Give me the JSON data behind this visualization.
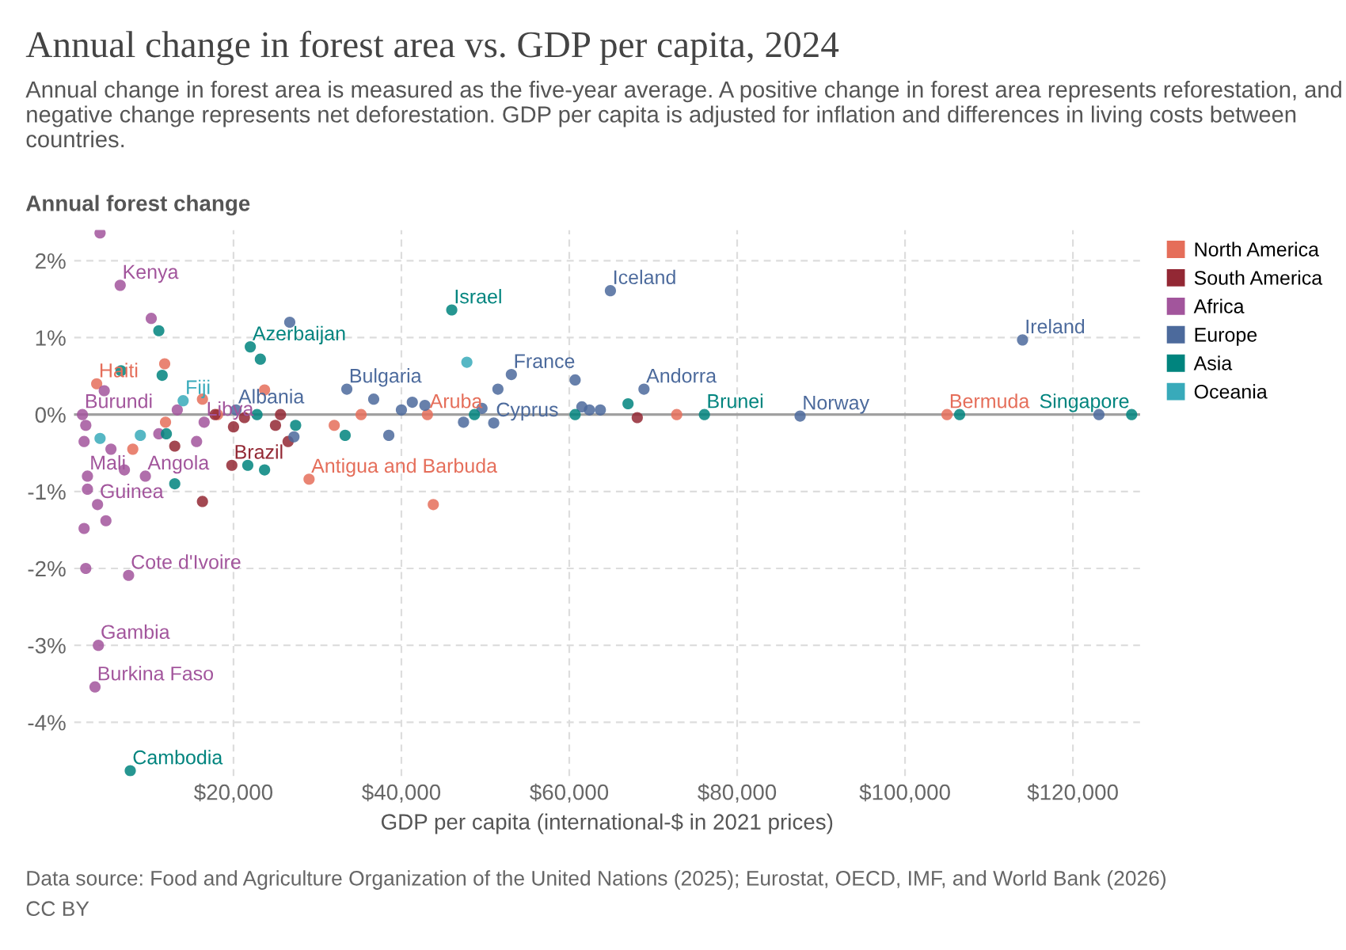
{
  "chart_data": {
    "type": "scatter",
    "title": "Annual change in forest area vs. GDP per capita, 2024",
    "subtitle": "Annual change in forest area is measured as the five-year average. A positive change in forest area represents reforestation, and negative change represents net deforestation. GDP per capita is adjusted for inflation and differences in living costs between countries.",
    "xlabel": "GDP per capita (international-$ in 2021 prices)",
    "ylabel": "Annual forest change",
    "annotations": [
      "Data source: Food and Agriculture Organization of the United Nations (2025); Eurostat, OECD, IMF, and World Bank (2026)",
      "CC BY"
    ],
    "xlim": [
      1000,
      128000
    ],
    "ylim": [
      -4.7,
      2.4
    ],
    "xticks": [
      {
        "value": 20000,
        "label": "$20,000"
      },
      {
        "value": 40000,
        "label": "$40,000"
      },
      {
        "value": 60000,
        "label": "$60,000"
      },
      {
        "value": 80000,
        "label": "$80,000"
      },
      {
        "value": 100000,
        "label": "$100,000"
      },
      {
        "value": 120000,
        "label": "$120,000"
      }
    ],
    "yticks": [
      {
        "value": 2,
        "label": "2%"
      },
      {
        "value": 1,
        "label": "1%"
      },
      {
        "value": 0,
        "label": "0%"
      },
      {
        "value": -1,
        "label": "-1%"
      },
      {
        "value": -2,
        "label": "-2%"
      },
      {
        "value": -3,
        "label": "-3%"
      },
      {
        "value": -4,
        "label": "-4%"
      }
    ],
    "grid": true,
    "legend": "top right",
    "marker": "circle",
    "ref_lines": [
      {
        "axis": "y",
        "value": 0,
        "color": "#a0a0a0"
      }
    ],
    "series": [
      {
        "name": "North America",
        "color": "#e56e5a",
        "x": [
          3700,
          29000,
          43100,
          105000,
          43800,
          23700,
          32000,
          35200,
          72800,
          18100,
          8000,
          11900,
          16300,
          11800
        ],
        "values": [
          0.4,
          -0.84,
          0.0,
          0.0,
          -1.17,
          0.32,
          -0.14,
          0.0,
          0.0,
          0.0,
          -0.45,
          -0.1,
          0.2,
          0.66
        ],
        "value_labels": [
          "Haiti",
          "Antigua and Barbuda",
          "Aruba",
          "Bermuda",
          null,
          null,
          null,
          null,
          null,
          null,
          null,
          null,
          null,
          null
        ]
      },
      {
        "name": "South America",
        "color": "#932834",
        "x": [
          19800,
          26500,
          25000,
          68100,
          21300,
          20000,
          25600,
          13000,
          16300,
          17800
        ],
        "values": [
          -0.66,
          -0.35,
          -0.14,
          -0.04,
          -0.04,
          -0.16,
          0.0,
          -0.41,
          -1.13,
          0.0
        ],
        "value_labels": [
          "Brazil",
          null,
          null,
          null,
          null,
          null,
          null,
          null,
          null,
          null
        ]
      },
      {
        "name": "Africa",
        "color": "#a2559c",
        "x": [
          6500,
          2000,
          16500,
          2600,
          9500,
          3800,
          7500,
          3900,
          3500,
          4100,
          10200,
          2400,
          2200,
          2600,
          2200,
          2400,
          5400,
          7000,
          11100,
          13300,
          4600,
          15600,
          4800
        ],
        "values": [
          1.68,
          0.0,
          -0.1,
          -0.8,
          -0.8,
          -1.17,
          -2.09,
          -3.0,
          -3.54,
          2.36,
          1.25,
          -0.14,
          -0.35,
          -0.97,
          -1.48,
          -2.0,
          -0.45,
          -0.72,
          -0.25,
          0.06,
          0.31,
          -0.35,
          -1.38
        ],
        "value_labels": [
          "Kenya",
          "Burundi",
          "Libya",
          "Mali",
          "Angola",
          "Guinea",
          "Cote d'Ivoire",
          "Gambia",
          "Burkina Faso",
          null,
          null,
          null,
          null,
          null,
          null,
          null,
          null,
          null,
          null,
          null,
          null,
          null,
          null
        ]
      },
      {
        "name": "Europe",
        "color": "#4c6a9c",
        "x": [
          20300,
          33500,
          51000,
          53100,
          64900,
          68900,
          87500,
          114000,
          123100,
          26700,
          27200,
          36700,
          40000,
          41300,
          42800,
          51500,
          60700,
          62400,
          61500,
          63700,
          49600,
          38500,
          47400
        ],
        "values": [
          0.06,
          0.33,
          -0.11,
          0.52,
          1.61,
          0.33,
          -0.02,
          0.97,
          0.0,
          1.2,
          -0.29,
          0.2,
          0.06,
          0.16,
          0.12,
          0.33,
          0.45,
          0.06,
          0.1,
          0.06,
          0.08,
          -0.27,
          -0.1
        ],
        "value_labels": [
          "Albania",
          "Bulgaria",
          "Cyprus",
          "France",
          "Iceland",
          "Andorra",
          "Norway",
          "Ireland",
          null,
          null,
          null,
          null,
          null,
          null,
          null,
          null,
          null,
          null,
          null,
          null,
          null,
          null,
          null
        ]
      },
      {
        "name": "Asia",
        "color": "#00847e",
        "x": [
          22000,
          46000,
          76100,
          127000,
          7700,
          106500,
          11100,
          6600,
          11500,
          12000,
          13000,
          23700,
          23200,
          21700,
          33300,
          27400,
          67000,
          60700,
          22800,
          48700
        ],
        "values": [
          0.88,
          1.36,
          0.0,
          0.0,
          -4.63,
          0.0,
          1.09,
          0.57,
          0.51,
          -0.25,
          -0.9,
          -0.72,
          0.72,
          -0.66,
          -0.27,
          -0.14,
          0.14,
          0.0,
          0.0,
          0.0
        ],
        "value_labels": [
          "Azerbaijan",
          "Israel",
          "Brunei",
          "Singapore",
          "Cambodia",
          null,
          null,
          null,
          null,
          null,
          null,
          null,
          null,
          null,
          null,
          null,
          null,
          null,
          null,
          null
        ]
      },
      {
        "name": "Oceania",
        "color": "#38aaba",
        "x": [
          14000,
          47800,
          4100,
          8900
        ],
        "values": [
          0.18,
          0.68,
          -0.31,
          -0.27
        ],
        "value_labels": [
          "Fiji",
          null,
          null,
          null
        ]
      }
    ]
  }
}
